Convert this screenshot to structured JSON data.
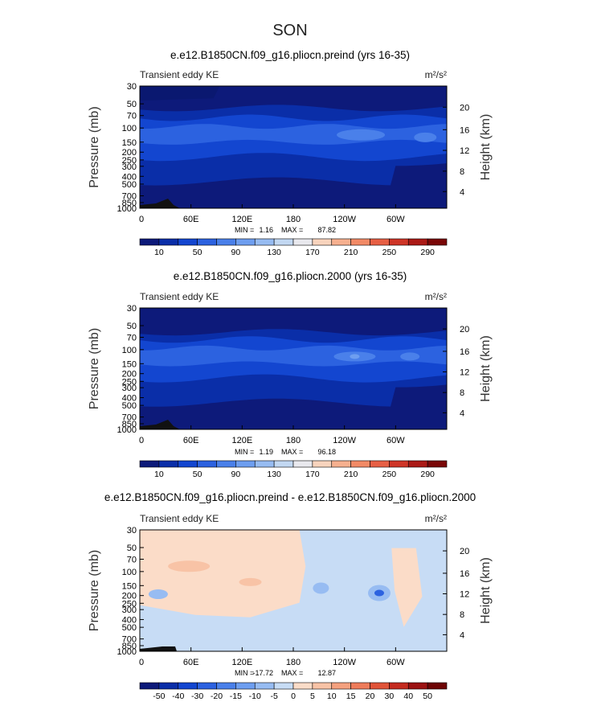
{
  "figure": {
    "title": "SON",
    "xtick_labels": [
      "0",
      "60E",
      "120E",
      "180",
      "120W",
      "60W"
    ],
    "ytick_labels": [
      "30",
      "50",
      "70",
      "100",
      "150",
      "200",
      "250",
      "300",
      "400",
      "500",
      "700",
      "850",
      "1000"
    ],
    "height_ticks": [
      "20",
      "16",
      "12",
      "8",
      "4"
    ],
    "ylabel": "Pressure (mb)",
    "ylabel_right": "Height (km)",
    "left_label": "Transient eddy KE",
    "units": "m²/s²"
  },
  "chart_data": [
    {
      "type": "heatmap",
      "title": "e.e12.B1850CN.f09_g16.pliocn.preind (yrs 16-35)",
      "min_label": "MIN =",
      "min": "1.16",
      "max_label": "MAX =",
      "max": "87.82",
      "colorbar_labels": [
        "10",
        "50",
        "90",
        "130",
        "170",
        "210",
        "250",
        "290"
      ],
      "colorbar_colors": [
        "#0d1a7a",
        "#0a2ea8",
        "#1346d0",
        "#2c62e0",
        "#4a80ea",
        "#6e9ef0",
        "#97bcf2",
        "#c2d8f2",
        "#e9e9ee",
        "#f8d4bd",
        "#f6b08f",
        "#f28a66",
        "#e75f44",
        "#cf3527",
        "#ab1a16",
        "#7a0707"
      ]
    },
    {
      "type": "heatmap",
      "title": "e.e12.B1850CN.f09_g16.pliocn.2000 (yrs 16-35)",
      "min_label": "MIN =",
      "min": "1.19",
      "max_label": "MAX =",
      "max": "96.18",
      "colorbar_labels": [
        "10",
        "50",
        "90",
        "130",
        "170",
        "210",
        "250",
        "290"
      ],
      "colorbar_colors": [
        "#0d1a7a",
        "#0a2ea8",
        "#1346d0",
        "#2c62e0",
        "#4a80ea",
        "#6e9ef0",
        "#97bcf2",
        "#c2d8f2",
        "#e9e9ee",
        "#f8d4bd",
        "#f6b08f",
        "#f28a66",
        "#e75f44",
        "#cf3527",
        "#ab1a16",
        "#7a0707"
      ]
    },
    {
      "type": "heatmap",
      "title": "e.e12.B1850CN.f09_g16.pliocn.preind - e.e12.B1850CN.f09_g16.pliocn.2000",
      "min_label": "MIN =",
      "min": "-17.72",
      "max_label": "MAX =",
      "max": "12.87",
      "colorbar_labels": [
        "-50",
        "-40",
        "-30",
        "-20",
        "-15",
        "-10",
        "-5",
        "0",
        "5",
        "10",
        "15",
        "20",
        "30",
        "40",
        "50"
      ],
      "colorbar_colors": [
        "#0d1a7a",
        "#0a2ea8",
        "#1346d0",
        "#2c62e0",
        "#4a80ea",
        "#6e9ef0",
        "#97bcf2",
        "#c7dcf5",
        "#fbdcc8",
        "#f8c3a6",
        "#f4a17f",
        "#ee7c5b",
        "#e05438",
        "#c42b1f",
        "#9c1212",
        "#6e0505"
      ]
    }
  ]
}
